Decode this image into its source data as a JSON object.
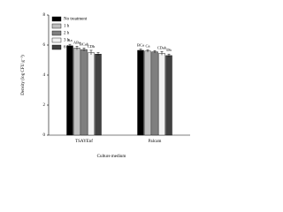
{
  "chart_data": {
    "type": "bar",
    "x_label": "Culture medium",
    "y_label": "Density (log CFU g⁻¹)",
    "categories": [
      "TSAYEnf",
      "Palcam"
    ],
    "series": [
      {
        "name": "No treatment",
        "color": "#000000",
        "values": [
          5.95,
          5.65
        ],
        "errors": [
          0.1,
          0.08
        ],
        "letters": [
          "Aa",
          "BCa"
        ]
      },
      {
        "name": "1 h",
        "color": "#bfbfbf",
        "values": [
          5.8,
          5.6
        ],
        "errors": [
          0.12,
          0.08
        ],
        "letters": [
          "ABa",
          "Ca"
        ]
      },
      {
        "name": "2 h",
        "color": "#7f7f7f",
        "values": [
          5.7,
          5.55
        ],
        "errors": [
          0.1,
          0.08
        ],
        "letters": [
          "BCab",
          null
        ]
      },
      {
        "name": "3 h",
        "color": "#f2f2f2",
        "values": [
          5.5,
          5.45
        ],
        "errors": [
          0.15,
          0.12
        ],
        "letters": [
          "CDb",
          "CDab"
        ]
      },
      {
        "name": "6 h",
        "color": "#404040",
        "values": [
          5.4,
          5.3
        ],
        "errors": [
          0.1,
          0.1
        ],
        "letters": [
          null,
          "Db"
        ]
      }
    ],
    "ylim": [
      0,
      8
    ],
    "yticks": [
      0,
      2,
      4,
      6,
      8
    ],
    "legend": "upper-left"
  }
}
